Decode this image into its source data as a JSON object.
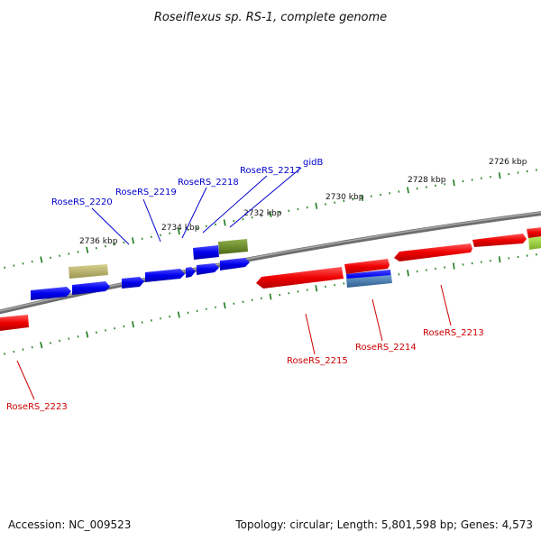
{
  "title": "Roseiflexus sp. RS-1, complete genome",
  "accession": "Accession: NC_009523",
  "summary": "Topology: circular; Length: 5,801,598 bp; Genes: 4,573",
  "colors": {
    "forward": "#0000ee",
    "reverse": "#ee0000",
    "rna_olive": "#6b8e23",
    "khaki": "#bdb76b",
    "steel": "#4682b4",
    "lime": "#9acd32",
    "backbone": "#808080",
    "ticks": "#1a7a1a",
    "label_blue": "#0000cc",
    "label_red": "#cc0000"
  },
  "kbp_marks": [
    "2726 kbp",
    "2728 kbp",
    "2730 kbp",
    "2732 kbp",
    "2734 kbp",
    "2736 kbp"
  ],
  "blue_labels": [
    "RoseRS_2220",
    "RoseRS_2219",
    "RoseRS_2218",
    "RoseRS_2217",
    "gidB"
  ],
  "red_labels": [
    "RoseRS_2213",
    "RoseRS_2214",
    "RoseRS_2215",
    "RoseRS_2223"
  ]
}
